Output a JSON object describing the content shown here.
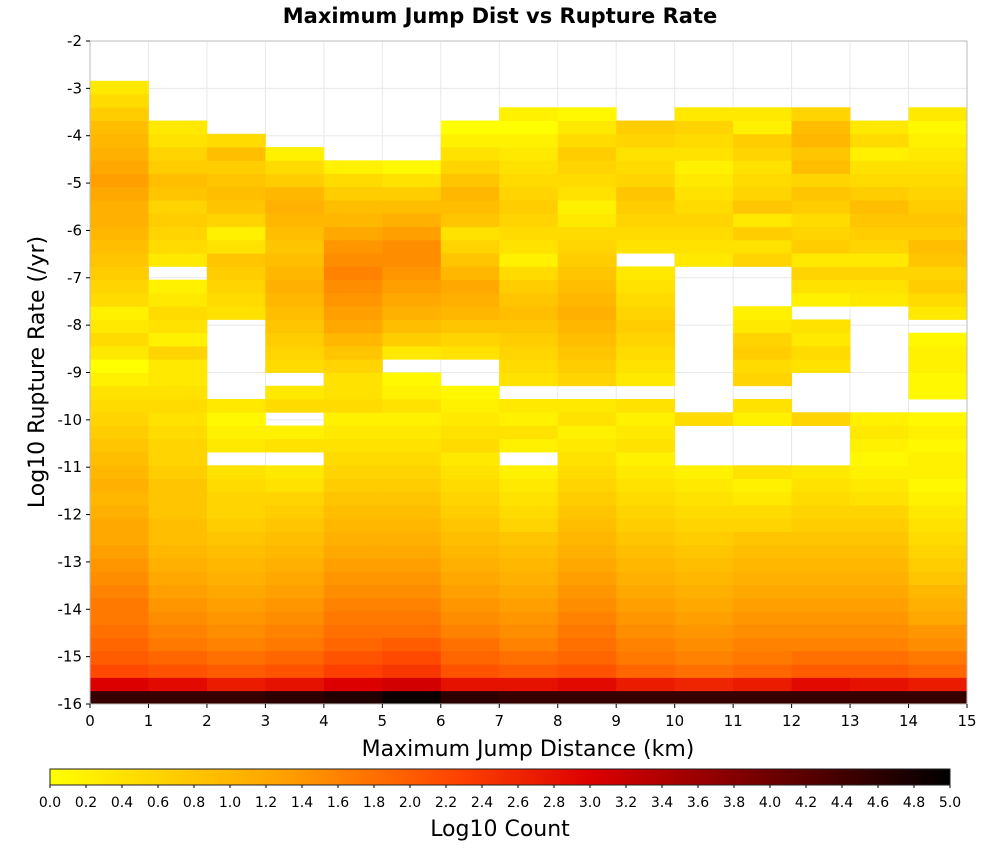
{
  "chart_data": {
    "type": "heatmap",
    "title": "Maximum Jump Dist vs Rupture Rate",
    "xlabel": "Maximum Jump Distance (km)",
    "ylabel": "Log10 Rupture Rate (/yr)",
    "colorbar_label": "Log10 Count",
    "xlim": [
      0,
      15
    ],
    "ylim": [
      -16,
      -2
    ],
    "x_ticks": [
      "0",
      "1",
      "2",
      "3",
      "4",
      "5",
      "6",
      "7",
      "8",
      "9",
      "10",
      "11",
      "12",
      "13",
      "14",
      "15"
    ],
    "y_ticks": [
      "-2",
      "-3",
      "-4",
      "-5",
      "-6",
      "-7",
      "-8",
      "-9",
      "-10",
      "-11",
      "-12",
      "-13",
      "-14",
      "-15",
      "-16"
    ],
    "colorbar_range": [
      0,
      5
    ],
    "colorbar_ticks": [
      "0.0",
      "0.2",
      "0.4",
      "0.6",
      "0.8",
      "1.0",
      "1.2",
      "1.4",
      "1.6",
      "1.8",
      "2.0",
      "2.2",
      "2.4",
      "2.6",
      "2.8",
      "3.0",
      "3.2",
      "3.4",
      "3.6",
      "3.8",
      "4.0",
      "4.2",
      "4.4",
      "4.6",
      "4.8",
      "5.0"
    ],
    "colormap": [
      "#ffff00",
      "#ffa500",
      "#ff4400",
      "#dd0000",
      "#000000"
    ],
    "x_bin_width": 1,
    "y_bin_width": 0.28,
    "y_bin_start": -16,
    "columns": [
      [
        4.5,
        3.0,
        2.2,
        2.0,
        1.9,
        1.8,
        1.7,
        1.7,
        1.6,
        1.5,
        1.4,
        1.3,
        1.2,
        1.2,
        1.1,
        1.0,
        1.1,
        1.0,
        0.9,
        0.8,
        0.7,
        0.6,
        0.5,
        0.4,
        0.2,
        0.0,
        0.3,
        0.5,
        0.3,
        0.2,
        0.5,
        0.6,
        0.7,
        0.8,
        0.9,
        1.0,
        1.1,
        1.1,
        1.2,
        1.3,
        1.2,
        1.1,
        1.0,
        0.9,
        0.7,
        0.5,
        0.3
      ],
      [
        4.5,
        2.9,
        2.1,
        1.9,
        1.7,
        1.6,
        1.5,
        1.4,
        1.3,
        1.2,
        1.1,
        1.0,
        0.9,
        0.9,
        0.8,
        0.8,
        0.8,
        0.7,
        0.6,
        0.6,
        0.5,
        0.4,
        0.5,
        0.4,
        0.3,
        0.3,
        0.6,
        0.2,
        0.4,
        0.5,
        0.3,
        0.2,
        null,
        0.3,
        0.5,
        0.6,
        0.7,
        0.6,
        0.8,
        0.9,
        0.7,
        0.6,
        0.4,
        0.3,
        null,
        null,
        null
      ],
      [
        4.5,
        2.7,
        2.0,
        1.8,
        1.6,
        1.5,
        1.4,
        1.3,
        1.2,
        1.1,
        1.0,
        0.9,
        0.8,
        0.7,
        0.6,
        0.6,
        0.5,
        0.4,
        null,
        0.3,
        0.2,
        0.1,
        0.3,
        null,
        null,
        null,
        null,
        null,
        null,
        0.4,
        0.5,
        0.6,
        0.7,
        0.8,
        0.4,
        0.2,
        0.6,
        0.8,
        0.9,
        0.8,
        0.7,
        0.9,
        0.5,
        null,
        null,
        null,
        null
      ],
      [
        4.6,
        2.8,
        2.1,
        1.9,
        1.7,
        1.6,
        1.5,
        1.4,
        1.3,
        1.2,
        1.1,
        1.0,
        0.9,
        0.8,
        0.7,
        0.6,
        0.4,
        0.3,
        null,
        0.4,
        0.2,
        null,
        0.5,
        0.3,
        null,
        0.5,
        0.6,
        0.7,
        0.8,
        0.9,
        1.0,
        1.1,
        1.0,
        0.9,
        0.8,
        0.9,
        1.0,
        1.1,
        1.0,
        0.7,
        0.5,
        0.2,
        null,
        null,
        null,
        null,
        null
      ],
      [
        4.7,
        3.0,
        2.3,
        2.1,
        1.9,
        1.8,
        1.7,
        1.6,
        1.5,
        1.4,
        1.3,
        1.2,
        1.1,
        1.0,
        0.9,
        0.8,
        0.7,
        0.6,
        0.5,
        0.4,
        0.3,
        0.2,
        0.5,
        0.4,
        0.4,
        0.6,
        0.8,
        1.0,
        1.2,
        1.3,
        1.4,
        1.5,
        1.6,
        1.5,
        1.4,
        1.2,
        1.0,
        0.9,
        0.7,
        0.5,
        0.2,
        null,
        null,
        null,
        null,
        null,
        null
      ],
      [
        4.9,
        3.1,
        2.4,
        2.2,
        2.0,
        1.8,
        1.7,
        1.6,
        1.5,
        1.4,
        1.3,
        1.2,
        1.1,
        1.0,
        0.9,
        0.8,
        0.7,
        0.6,
        0.5,
        0.4,
        0.3,
        0.2,
        0.4,
        0.2,
        0.1,
        null,
        0.3,
        0.7,
        0.9,
        1.1,
        1.2,
        1.3,
        1.4,
        1.5,
        1.5,
        1.3,
        1.1,
        0.9,
        0.7,
        0.4,
        0.1,
        null,
        null,
        null,
        null,
        null,
        null
      ],
      [
        4.6,
        2.8,
        2.1,
        1.9,
        1.8,
        1.6,
        1.5,
        1.4,
        1.3,
        1.2,
        1.1,
        1.0,
        0.9,
        0.8,
        0.7,
        0.6,
        0.5,
        0.4,
        0.3,
        0.5,
        0.4,
        0.3,
        0.2,
        0.1,
        null,
        null,
        0.4,
        0.6,
        0.8,
        1.0,
        1.1,
        1.2,
        1.0,
        0.8,
        0.6,
        0.4,
        0.8,
        0.9,
        1.0,
        0.8,
        0.6,
        0.4,
        0.2,
        0.0,
        null,
        null,
        null
      ],
      [
        4.5,
        2.8,
        2.0,
        1.8,
        1.6,
        1.5,
        1.4,
        1.3,
        1.2,
        1.1,
        1.0,
        0.9,
        0.8,
        0.6,
        0.5,
        0.4,
        0.3,
        0.2,
        null,
        0.2,
        0.4,
        0.2,
        0.3,
        null,
        0.4,
        0.5,
        0.6,
        0.7,
        0.8,
        0.9,
        0.8,
        0.7,
        0.5,
        0.2,
        0.4,
        0.5,
        0.6,
        0.7,
        0.6,
        0.5,
        0.4,
        0.3,
        0.2,
        0.0,
        0.2,
        null,
        null
      ],
      [
        4.5,
        2.9,
        2.1,
        1.9,
        1.8,
        1.7,
        1.6,
        1.5,
        1.4,
        1.3,
        1.2,
        1.1,
        1.0,
        0.9,
        0.8,
        0.7,
        0.6,
        0.5,
        0.4,
        0.3,
        0.2,
        0.4,
        0.3,
        null,
        0.6,
        0.7,
        0.8,
        0.9,
        1.0,
        1.1,
        1.0,
        0.9,
        0.8,
        0.7,
        0.6,
        0.5,
        0.3,
        0.2,
        0.4,
        0.5,
        0.6,
        0.7,
        0.5,
        0.3,
        0.1,
        null,
        null
      ],
      [
        4.5,
        2.7,
        1.9,
        1.7,
        1.6,
        1.5,
        1.4,
        1.3,
        1.2,
        1.1,
        1.0,
        0.9,
        0.8,
        0.7,
        0.6,
        0.5,
        0.4,
        0.3,
        0.2,
        0.4,
        0.3,
        0.2,
        0.4,
        null,
        0.3,
        0.4,
        0.5,
        0.6,
        0.7,
        0.6,
        0.5,
        0.4,
        0.3,
        null,
        0.4,
        0.5,
        0.6,
        0.7,
        0.8,
        0.6,
        0.5,
        0.4,
        0.6,
        0.7,
        null,
        null,
        null
      ],
      [
        4.5,
        2.6,
        1.8,
        1.6,
        1.5,
        1.4,
        1.3,
        1.2,
        1.1,
        1.0,
        0.9,
        0.8,
        0.7,
        0.6,
        0.5,
        0.4,
        0.3,
        0.2,
        null,
        null,
        null,
        0.5,
        null,
        null,
        null,
        null,
        null,
        null,
        null,
        null,
        null,
        null,
        null,
        0.3,
        0.4,
        0.5,
        0.6,
        0.5,
        0.4,
        0.3,
        0.2,
        0.4,
        0.5,
        0.6,
        0.3,
        null,
        null
      ],
      [
        4.5,
        2.7,
        1.9,
        1.7,
        1.6,
        1.5,
        1.4,
        1.3,
        1.2,
        1.1,
        1.0,
        0.9,
        0.8,
        0.6,
        0.5,
        0.3,
        0.2,
        0.4,
        null,
        null,
        null,
        0.2,
        0.4,
        null,
        0.6,
        0.5,
        0.7,
        0.6,
        0.3,
        0.2,
        null,
        null,
        null,
        0.6,
        0.4,
        0.7,
        0.3,
        0.8,
        0.6,
        0.5,
        0.4,
        0.6,
        0.7,
        0.2,
        0.3,
        null,
        null
      ],
      [
        4.5,
        2.9,
        2.0,
        1.8,
        1.6,
        1.5,
        1.4,
        1.3,
        1.2,
        1.1,
        1.0,
        0.9,
        0.8,
        0.7,
        0.6,
        0.5,
        0.4,
        0.3,
        null,
        null,
        null,
        0.6,
        null,
        null,
        null,
        0.4,
        0.5,
        0.3,
        0.4,
        null,
        0.2,
        0.4,
        0.6,
        0.3,
        0.7,
        0.6,
        0.5,
        0.7,
        0.8,
        0.6,
        0.9,
        0.8,
        1.0,
        0.9,
        0.6,
        null,
        null
      ],
      [
        4.5,
        2.8,
        2.0,
        1.8,
        1.6,
        1.5,
        1.4,
        1.3,
        1.2,
        1.1,
        1.0,
        0.9,
        0.8,
        0.7,
        0.6,
        0.4,
        0.3,
        0.2,
        0.1,
        0.2,
        0.3,
        0.2,
        null,
        null,
        null,
        null,
        null,
        null,
        null,
        null,
        0.3,
        0.4,
        0.6,
        0.3,
        0.6,
        0.7,
        0.8,
        0.9,
        0.7,
        0.5,
        0.4,
        0.2,
        0.5,
        0.3,
        null,
        null,
        null
      ],
      [
        4.5,
        2.7,
        1.9,
        1.7,
        1.5,
        1.4,
        1.2,
        1.1,
        1.0,
        0.8,
        0.7,
        0.6,
        0.5,
        0.4,
        0.3,
        0.2,
        0.1,
        0.2,
        0.2,
        0.1,
        0.2,
        0.1,
        null,
        0.1,
        0.1,
        0.2,
        0.2,
        0.1,
        null,
        0.3,
        0.5,
        0.7,
        0.6,
        0.8,
        0.9,
        0.7,
        0.8,
        0.7,
        0.6,
        0.5,
        0.4,
        0.3,
        0.2,
        0.1,
        0.3,
        null,
        null
      ]
    ]
  }
}
